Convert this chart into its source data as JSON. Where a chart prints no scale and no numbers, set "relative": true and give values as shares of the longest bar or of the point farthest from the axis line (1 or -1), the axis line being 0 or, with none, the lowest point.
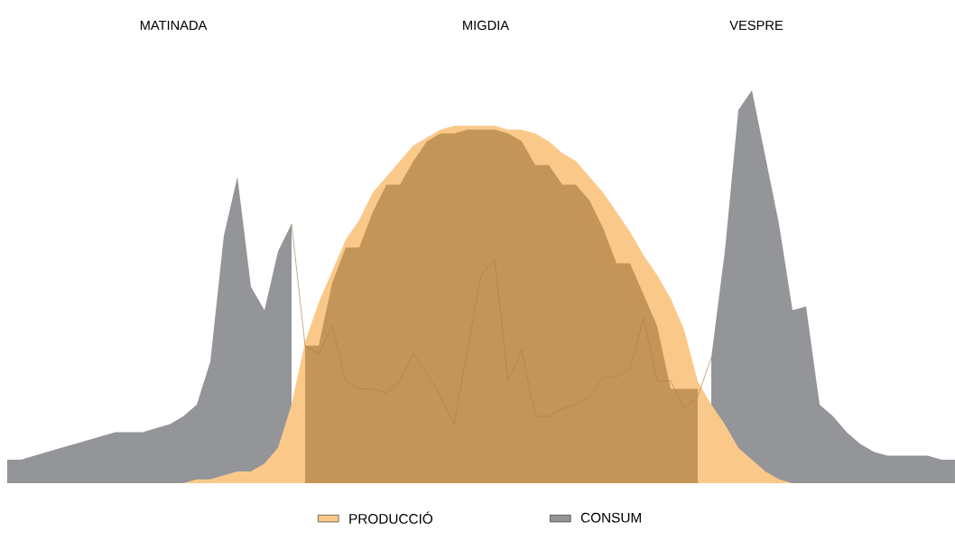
{
  "chart_data": {
    "type": "area",
    "relative": true,
    "legend": "bottom",
    "annotations": [
      "MATINADA",
      "MIGDIA",
      "VESPRE"
    ],
    "categories": [
      null,
      null,
      null,
      null,
      null,
      null,
      null,
      null,
      null,
      null,
      null,
      null,
      null,
      null,
      null,
      null,
      null,
      null,
      null,
      null,
      null,
      null,
      null,
      null,
      null,
      null,
      null,
      null,
      null,
      null,
      null,
      null,
      null,
      null,
      null,
      null,
      null,
      null,
      null,
      null,
      null,
      null,
      null,
      null,
      null,
      null,
      null,
      null,
      null,
      null,
      null,
      null,
      null,
      null,
      null,
      null,
      null,
      null,
      null,
      null,
      null,
      null,
      null,
      null,
      null,
      null,
      null,
      null,
      null,
      null,
      null
    ],
    "series": [
      {
        "name": "CONSUM",
        "color": "#939598",
        "values": [
          0.06,
          0.06,
          0.07,
          0.08,
          0.09,
          0.1,
          0.11,
          0.12,
          0.13,
          0.13,
          0.13,
          0.14,
          0.15,
          0.17,
          0.2,
          0.31,
          0.63,
          0.78,
          0.5,
          0.44,
          0.59,
          0.66,
          null,
          null,
          null,
          null,
          null,
          null,
          null,
          null,
          null,
          null,
          null,
          null,
          null,
          null,
          null,
          null,
          null,
          null,
          null,
          null,
          null,
          null,
          null,
          null,
          null,
          null,
          null,
          null,
          null,
          null,
          0.32,
          0.59,
          0.95,
          1.0,
          0.83,
          0.66,
          0.44,
          0.45,
          0.2,
          0.17,
          0.13,
          0.1,
          0.08,
          0.07,
          0.07,
          0.07,
          0.07,
          0.06,
          0.06
        ]
      },
      {
        "name": "PRODUCCIÓ",
        "color": "#fac98a",
        "values": [
          null,
          null,
          null,
          null,
          null,
          null,
          null,
          null,
          null,
          null,
          null,
          null,
          null,
          0,
          0.01,
          0.01,
          0.02,
          0.03,
          0.03,
          0.05,
          0.09,
          0.2,
          0.36,
          0.46,
          0.54,
          0.62,
          0.67,
          0.74,
          0.78,
          0.82,
          0.86,
          0.88,
          0.9,
          0.91,
          0.91,
          0.91,
          0.91,
          0.9,
          0.9,
          0.89,
          0.87,
          0.84,
          0.82,
          0.78,
          0.74,
          0.69,
          0.64,
          0.58,
          0.53,
          0.47,
          0.39,
          0.26,
          0.2,
          0.15,
          0.09,
          0.06,
          0.03,
          0.01,
          0,
          null,
          null,
          null,
          null,
          null,
          null,
          null,
          null,
          null,
          null,
          null,
          null
        ]
      },
      {
        "type": "area",
        "color": "#c49558",
        "values": [
          null,
          null,
          null,
          null,
          null,
          null,
          null,
          null,
          null,
          null,
          null,
          null,
          null,
          null,
          null,
          null,
          null,
          null,
          null,
          null,
          null,
          null,
          0.35,
          0.35,
          0.51,
          0.6,
          0.6,
          0.69,
          0.76,
          0.76,
          0.82,
          0.87,
          0.89,
          0.89,
          0.9,
          0.9,
          0.9,
          0.89,
          0.87,
          0.81,
          0.81,
          0.76,
          0.76,
          0.72,
          0.65,
          0.56,
          0.56,
          0.48,
          0.4,
          0.24,
          0.24,
          0.24,
          null,
          null,
          null,
          null,
          null,
          null,
          null,
          null,
          null,
          null,
          null,
          null,
          null,
          null,
          null,
          null,
          null,
          null,
          null
        ]
      },
      {
        "type": "line",
        "color": "#a88052",
        "values": [
          null,
          null,
          null,
          null,
          null,
          null,
          null,
          null,
          null,
          null,
          null,
          null,
          null,
          null,
          null,
          null,
          null,
          null,
          null,
          null,
          null,
          0.66,
          0.35,
          0.33,
          0.4,
          0.26,
          0.24,
          0.24,
          0.23,
          0.26,
          0.33,
          0.28,
          0.22,
          0.15,
          0.34,
          0.53,
          0.57,
          0.26,
          0.34,
          0.17,
          0.17,
          0.19,
          0.2,
          0.22,
          0.27,
          0.27,
          0.29,
          0.42,
          0.26,
          0.26,
          0.19,
          0.22,
          0.32,
          null,
          null,
          null,
          null,
          null,
          null,
          null,
          null,
          null,
          null,
          null,
          null,
          null,
          null,
          null,
          null,
          null,
          null
        ]
      }
    ]
  }
}
